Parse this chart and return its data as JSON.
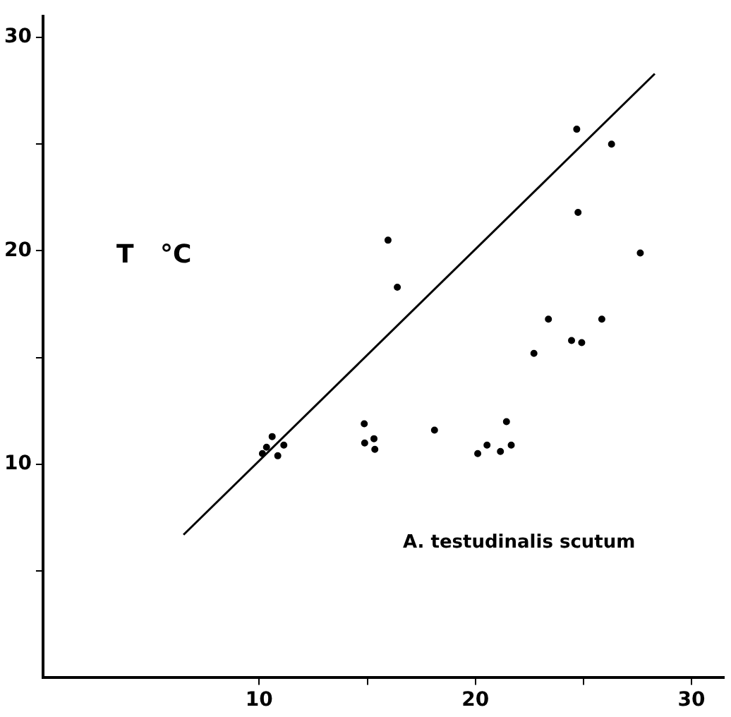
{
  "chart_data": {
    "type": "scatter",
    "ylabel": "T   °C",
    "annotations": [
      "A. testudinalis scutum"
    ],
    "xlim": [
      0,
      31.5
    ],
    "ylim": [
      0,
      31
    ],
    "xticks": [
      10,
      {
        "value": 15,
        "label": null
      },
      20,
      {
        "value": 25,
        "label": null
      },
      30
    ],
    "yticks": [
      {
        "value": 5,
        "label": null
      },
      10,
      {
        "value": 15,
        "label": null
      },
      20,
      {
        "value": 25,
        "label": null
      },
      30
    ],
    "grid": false,
    "legend": false,
    "series": [
      {
        "color": "#000000",
        "marker": "circle",
        "x": [
          10.15,
          10.34,
          10.6,
          10.86,
          11.14,
          14.86,
          14.88,
          15.31,
          15.35,
          15.96,
          16.39,
          18.11,
          20.11,
          20.54,
          21.16,
          21.44,
          21.66,
          22.71,
          23.38,
          24.45,
          24.69,
          24.75,
          24.92,
          25.85,
          26.3,
          27.63
        ],
        "values": [
          10.5,
          10.8,
          11.3,
          10.4,
          10.9,
          11.9,
          11.0,
          11.2,
          10.7,
          20.5,
          18.3,
          11.6,
          10.5,
          10.9,
          10.6,
          12.0,
          10.9,
          15.2,
          16.8,
          15.8,
          25.7,
          21.8,
          15.7,
          16.8,
          25.0,
          19.9
        ]
      },
      {
        "type": "line",
        "marker": "none",
        "color": "#000000",
        "x": [
          6.5,
          28.3
        ],
        "values": [
          6.7,
          28.3
        ]
      }
    ]
  }
}
